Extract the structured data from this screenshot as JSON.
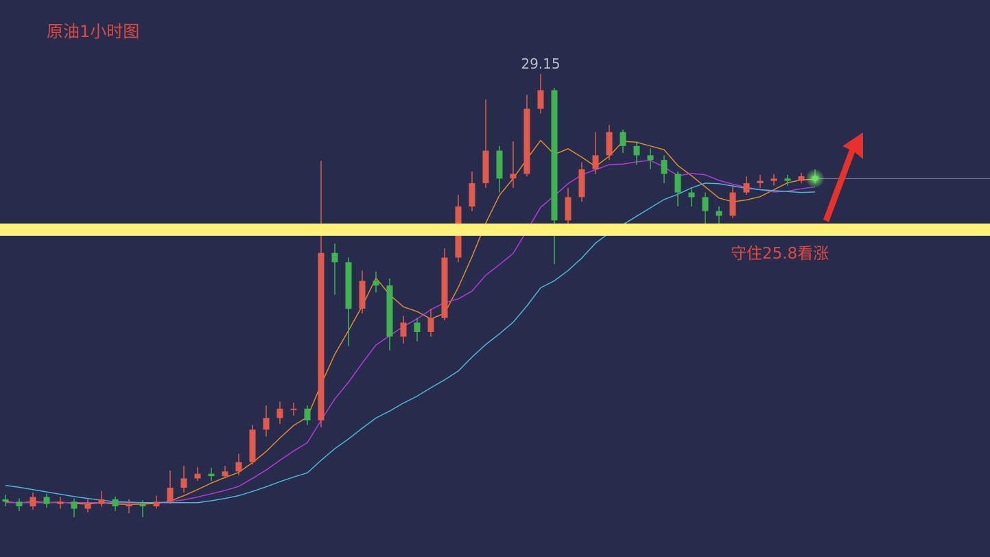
{
  "chart_data": {
    "type": "candlestick",
    "title": "原油1小时图",
    "annotation": "守住25.8看涨",
    "support": 25.8,
    "support_color": "#fff27a",
    "up_color": "#e25a4b",
    "down_color": "#3fb34f",
    "ylim": [
      18.76,
      30.74
    ],
    "open": [
      20.0,
      19.95,
      19.85,
      20.05,
      19.9,
      19.95,
      19.8,
      19.9,
      20.0,
      19.85,
      19.9,
      19.85,
      19.95,
      20.25,
      20.45,
      20.55,
      20.5,
      20.6,
      20.8,
      21.5,
      21.75,
      21.95,
      21.95,
      21.7,
      25.3,
      25.1,
      24.1,
      24.7,
      24.6,
      23.5,
      23.8,
      23.6,
      23.9,
      25.2,
      26.3,
      26.8,
      27.5,
      26.9,
      27.0,
      28.4,
      28.8,
      26.0,
      26.5,
      27.1,
      27.4,
      27.9,
      27.6,
      27.4,
      27.3,
      27.0,
      26.6,
      26.5,
      26.2,
      26.1,
      26.6,
      26.8,
      26.85,
      26.9,
      26.85,
      26.95
    ],
    "high": [
      20.1,
      20.02,
      20.15,
      20.12,
      20.05,
      20.02,
      20.0,
      20.18,
      20.06,
      20.0,
      19.98,
      20.08,
      20.62,
      20.72,
      20.7,
      20.68,
      20.72,
      20.98,
      21.6,
      22.02,
      22.1,
      22.08,
      22.02,
      27.28,
      25.5,
      25.2,
      24.92,
      24.9,
      24.75,
      23.95,
      23.9,
      24.1,
      25.4,
      26.55,
      27.05,
      28.6,
      27.6,
      27.7,
      28.7,
      29.15,
      28.85,
      26.7,
      27.25,
      27.9,
      28.05,
      27.95,
      27.7,
      27.55,
      27.4,
      27.05,
      26.7,
      26.6,
      26.3,
      26.72,
      26.95,
      26.98,
      27.0,
      26.98,
      27.02,
      27.1
    ],
    "low": [
      19.85,
      19.75,
      19.78,
      19.82,
      19.8,
      19.62,
      19.72,
      19.84,
      19.75,
      19.7,
      19.62,
      19.8,
      19.9,
      20.15,
      20.4,
      20.4,
      20.45,
      20.52,
      20.75,
      21.35,
      21.62,
      21.8,
      21.6,
      21.55,
      24.4,
      23.3,
      24.0,
      24.45,
      23.2,
      23.35,
      23.4,
      23.5,
      23.85,
      25.1,
      26.2,
      26.7,
      26.6,
      26.7,
      26.95,
      28.3,
      25.06,
      25.8,
      26.4,
      27.0,
      27.3,
      27.45,
      27.2,
      27.1,
      26.8,
      26.3,
      26.3,
      25.9,
      25.85,
      26.05,
      26.55,
      26.7,
      26.75,
      26.75,
      26.8,
      26.8
    ],
    "close": [
      19.95,
      19.85,
      20.05,
      19.9,
      19.95,
      19.8,
      19.9,
      20.0,
      19.85,
      19.9,
      19.85,
      19.95,
      20.25,
      20.45,
      20.55,
      20.5,
      20.6,
      20.8,
      21.5,
      21.75,
      21.95,
      21.95,
      21.7,
      25.3,
      25.1,
      24.1,
      24.7,
      24.6,
      23.5,
      23.8,
      23.6,
      23.9,
      25.2,
      26.3,
      26.8,
      27.5,
      26.9,
      27.0,
      28.4,
      28.8,
      26.0,
      26.5,
      27.1,
      27.4,
      27.9,
      27.6,
      27.4,
      27.3,
      27.0,
      26.6,
      26.5,
      26.2,
      26.1,
      26.6,
      26.8,
      26.85,
      26.9,
      26.85,
      26.95,
      26.9
    ],
    "series": [
      {
        "color": "#e08a2c",
        "values": [
          19.95,
          19.92,
          19.95,
          19.93,
          19.94,
          19.91,
          19.9,
          19.93,
          19.9,
          19.89,
          19.9,
          19.91,
          19.96,
          20.08,
          20.21,
          20.35,
          20.47,
          20.58,
          20.79,
          21.03,
          21.32,
          21.59,
          21.77,
          22.47,
          23.12,
          23.63,
          24.16,
          24.76,
          24.4,
          24.14,
          24.04,
          23.88,
          24.0,
          24.56,
          25.22,
          25.94,
          26.54,
          26.9,
          27.32,
          27.72,
          27.42,
          27.54,
          27.36,
          27.16,
          27.38,
          27.7,
          27.68,
          27.6,
          27.52,
          27.18,
          26.96,
          26.72,
          26.48,
          26.4,
          26.44,
          26.51,
          26.66,
          26.81,
          26.87,
          26.89
        ]
      },
      {
        "color": "#b33ad6",
        "values": [
          19.93,
          19.93,
          19.93,
          19.93,
          19.93,
          19.93,
          19.93,
          19.93,
          19.93,
          19.93,
          19.93,
          19.93,
          19.95,
          19.99,
          20.05,
          20.12,
          20.19,
          20.28,
          20.45,
          20.63,
          20.84,
          21.04,
          21.22,
          21.7,
          22.16,
          22.52,
          22.93,
          23.32,
          23.52,
          23.72,
          23.88,
          24.08,
          24.23,
          24.31,
          24.48,
          24.82,
          25.05,
          25.29,
          25.78,
          26.28,
          26.53,
          26.79,
          26.98,
          27.09,
          27.2,
          27.21,
          27.26,
          27.29,
          27.15,
          26.96,
          27.01,
          26.98,
          26.86,
          26.78,
          26.71,
          26.66,
          26.61,
          26.63,
          26.68,
          26.72
        ]
      },
      {
        "color": "#4fb3d6",
        "values": [
          20.3,
          20.26,
          20.21,
          20.16,
          20.11,
          20.06,
          20.02,
          19.98,
          19.95,
          19.94,
          19.93,
          19.93,
          19.93,
          19.93,
          19.93,
          19.97,
          20.02,
          20.08,
          20.17,
          20.27,
          20.38,
          20.48,
          20.57,
          20.84,
          21.09,
          21.3,
          21.53,
          21.75,
          21.9,
          22.07,
          22.22,
          22.4,
          22.57,
          22.76,
          23.06,
          23.33,
          23.56,
          23.81,
          24.16,
          24.55,
          24.7,
          24.92,
          25.19,
          25.51,
          25.73,
          25.91,
          26.09,
          26.27,
          26.45,
          26.56,
          26.7,
          26.8,
          26.79,
          26.74,
          26.69,
          26.66,
          26.64,
          26.62,
          26.6,
          26.61
        ]
      }
    ]
  }
}
